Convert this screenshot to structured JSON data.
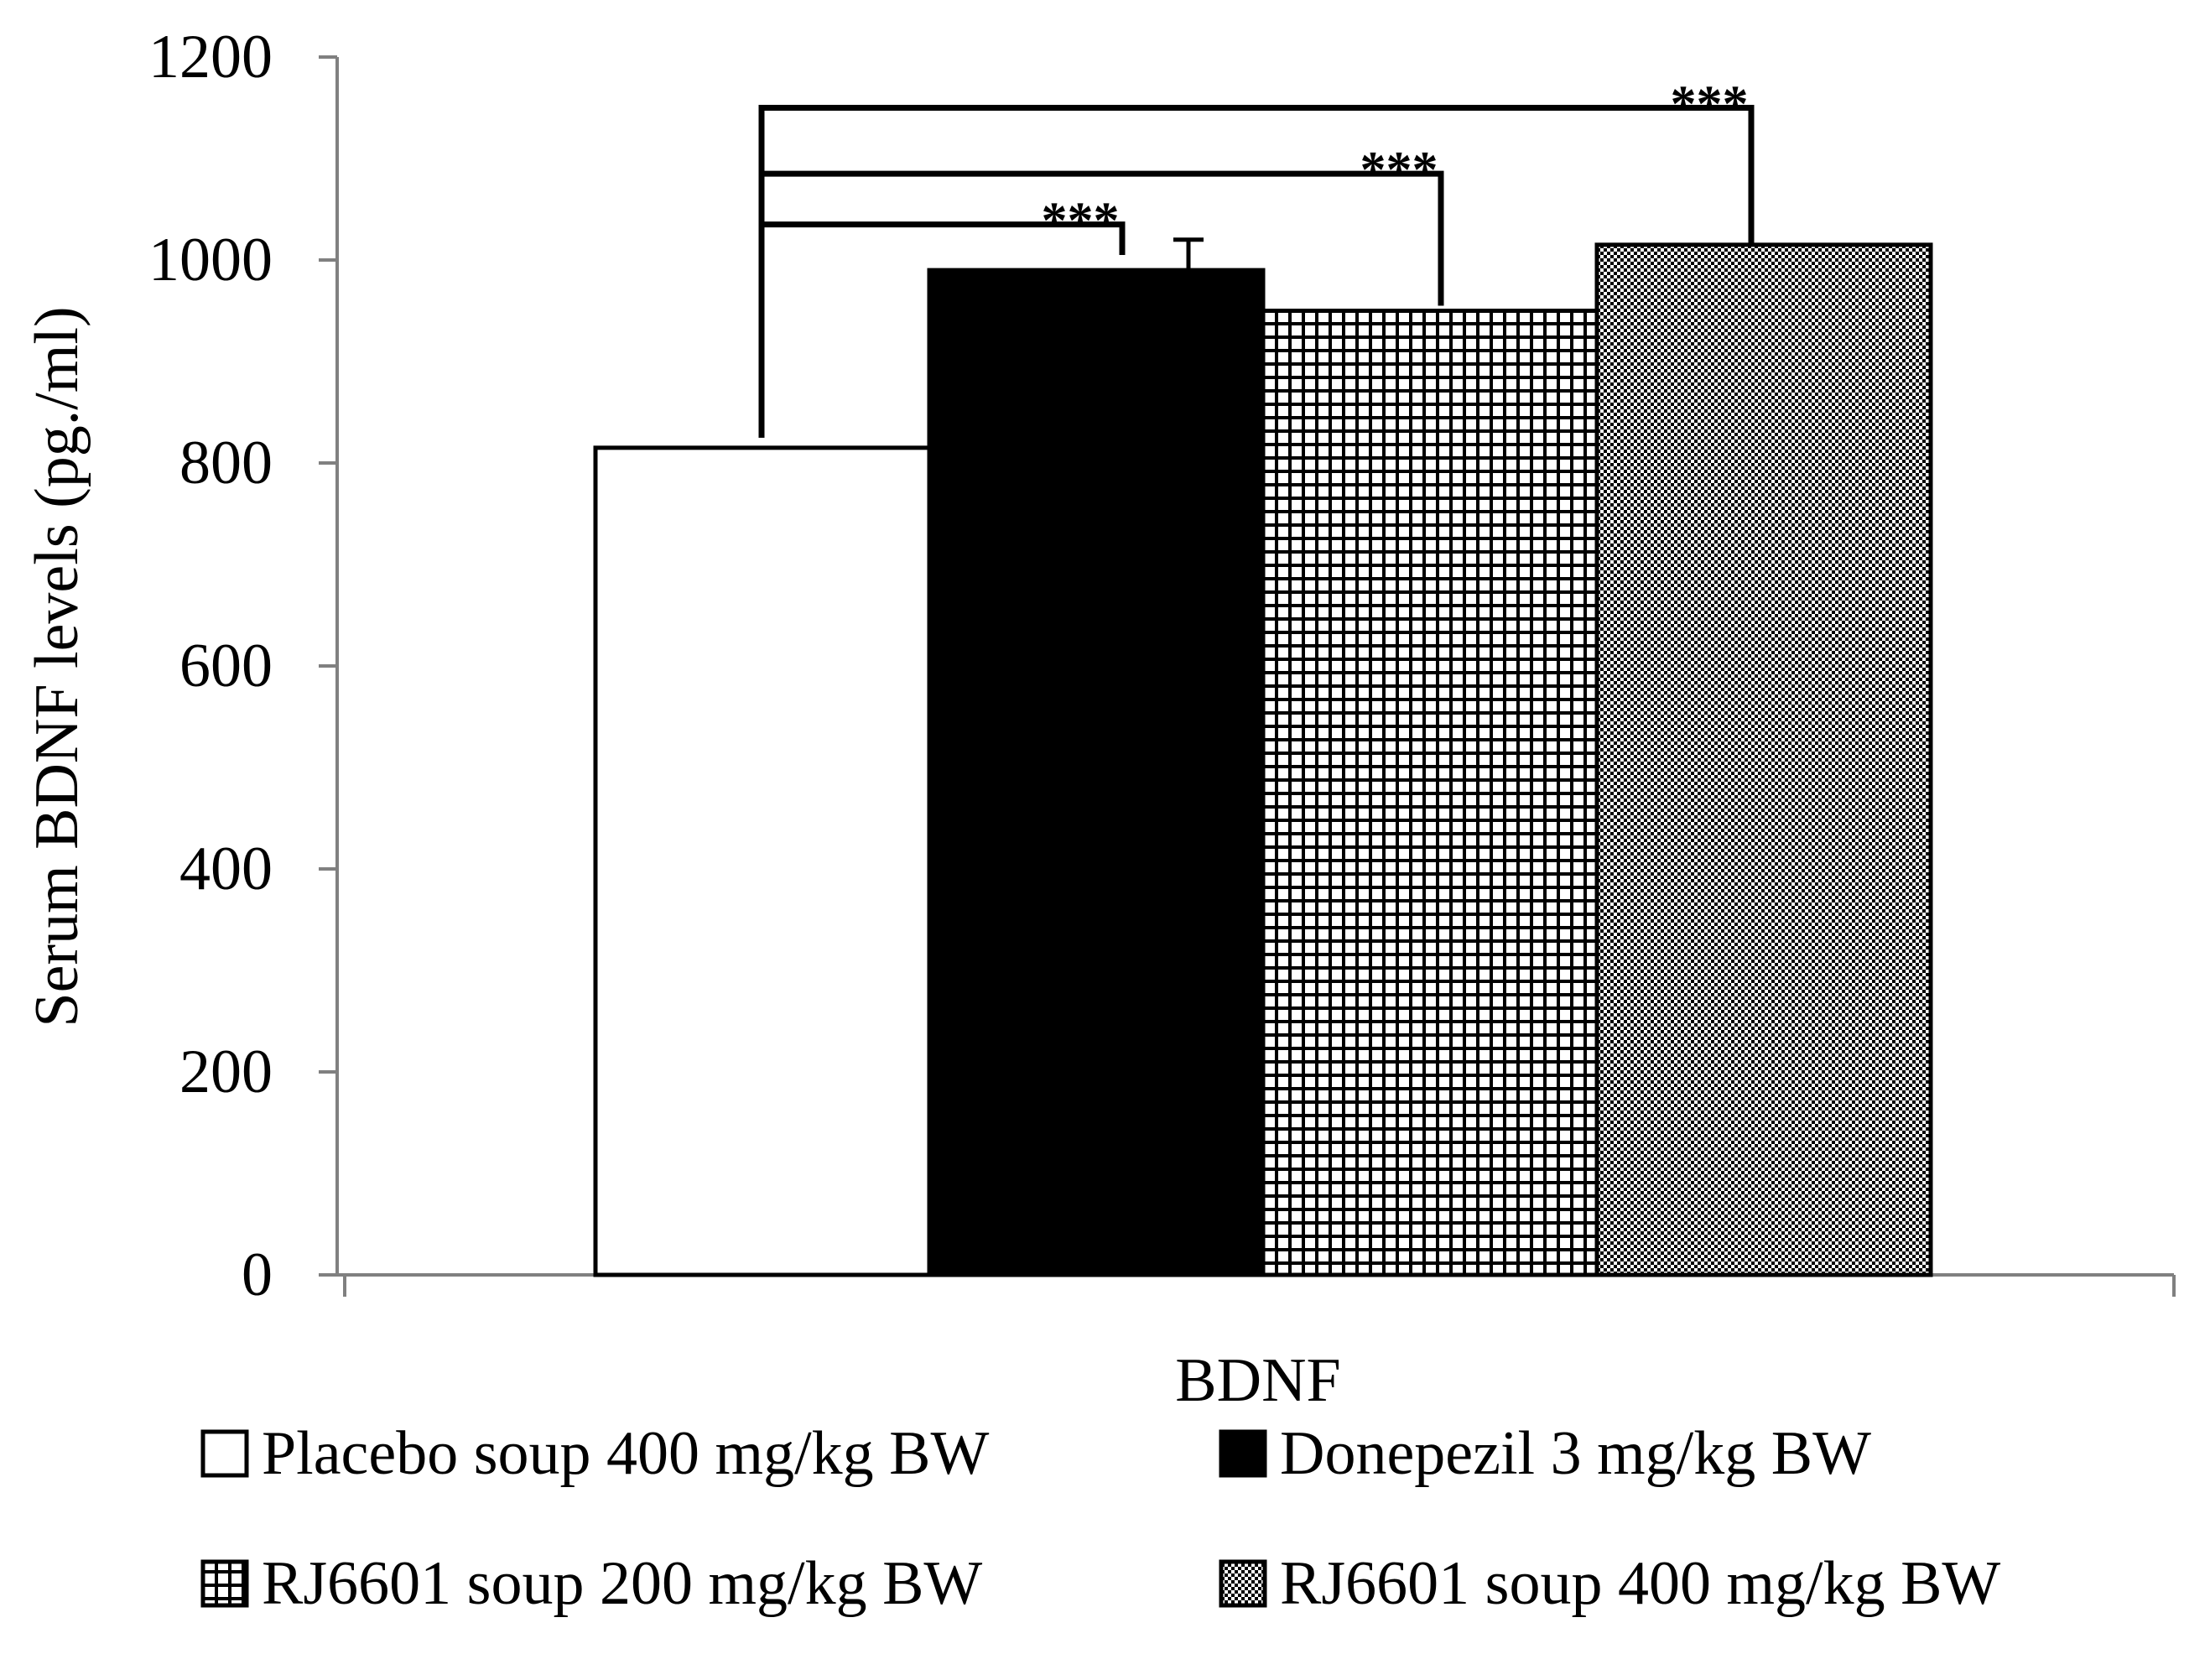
{
  "chart_data": {
    "type": "bar",
    "title": "",
    "categories": [
      "BDNF"
    ],
    "xlabel": "",
    "ylabel": "Serum BDNF levels (pg./ml)",
    "ylim": [
      0,
      1200
    ],
    "yticks": [
      0,
      200,
      400,
      600,
      800,
      1000,
      1200
    ],
    "grid": false,
    "legend": "bottom",
    "series": [
      {
        "name": "Placebo soup 400 mg/kg BW",
        "values": [
          815
        ],
        "error": [
          0
        ],
        "fill": "white"
      },
      {
        "name": "Donepezil 3 mg/kg BW",
        "values": [
          990
        ],
        "error": [
          30
        ],
        "fill": "black"
      },
      {
        "name": "RJ6601 soup 200 mg/kg BW",
        "values": [
          950
        ],
        "error": [
          0
        ],
        "fill": "grid"
      },
      {
        "name": "RJ6601 soup 400 mg/kg BW",
        "values": [
          1015
        ],
        "error": [
          0
        ],
        "fill": "checker"
      }
    ],
    "significance": [
      {
        "from_series": 0,
        "to_series": 1,
        "label": "***",
        "level": 1035,
        "end_level": 1005
      },
      {
        "from_series": 0,
        "to_series": 2,
        "label": "***",
        "level": 1085,
        "end_level": 955
      },
      {
        "from_series": 0,
        "to_series": 3,
        "label": "***",
        "level": 1150,
        "end_level": 1015
      }
    ],
    "colors": {
      "axis": "#808080",
      "ink": "#000000",
      "background": "#ffffff"
    }
  }
}
